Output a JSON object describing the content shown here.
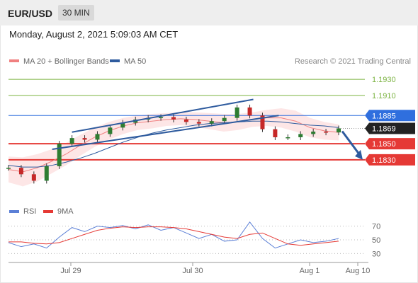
{
  "header": {
    "pair": "EUR/USD",
    "timeframe": "30 MIN"
  },
  "date_line": "Monday, August 2, 2021 5:09:03 AM CET",
  "colors": {
    "ma20": "#f08080",
    "ma50": "#2e5b9e",
    "resistance": "#7cb342",
    "support": "#e53935",
    "pivot": "#2f6fde",
    "current": "#222222",
    "rsi": "#5b7fd6",
    "rsi_ma": "#e53935"
  },
  "legend": {
    "ma20": "MA 20 + Bollinger Bands",
    "ma50": "MA 50",
    "credit": "Research © 2021 Trading Central"
  },
  "rsi_legend": {
    "rsi": "RSI",
    "ma": "9MA"
  },
  "chart_data": [
    {
      "type": "line",
      "title": "",
      "x_ticks": [
        "Jul 29",
        "Jul 30",
        "Aug 1",
        "Aug 10"
      ],
      "ylim": [
        1.1778,
        1.1945
      ],
      "levels": [
        {
          "value": 1.193,
          "label": "1.1930",
          "kind": "resistance"
        },
        {
          "value": 1.191,
          "label": "1.1910",
          "kind": "resistance"
        },
        {
          "value": 1.1885,
          "label": "1.1885",
          "kind": "pivot"
        },
        {
          "value": 1.1869,
          "label": "1.1869",
          "kind": "current"
        },
        {
          "value": 1.185,
          "label": "1.1850",
          "kind": "support"
        },
        {
          "value": 1.183,
          "label": "1.1830",
          "kind": "support"
        }
      ],
      "series": [
        {
          "name": "MA 20 + Bollinger Bands",
          "values": [
            1.1818,
            1.1815,
            1.182,
            1.1828,
            1.1837,
            1.1848,
            1.1858,
            1.1866,
            1.1872,
            1.1876,
            1.1878,
            1.188,
            1.1881,
            1.188,
            1.1878,
            1.1876,
            1.1877,
            1.188,
            1.1882,
            1.1882,
            1.1878,
            1.187,
            1.1866,
            1.1864
          ]
        },
        {
          "name": "MA 50",
          "values": [
            1.1823,
            1.1821,
            1.1821,
            1.1823,
            1.1827,
            1.1832,
            1.1838,
            1.1845,
            1.1852,
            1.1858,
            1.1863,
            1.1867,
            1.187,
            1.1873,
            1.1875,
            1.1876,
            1.1877,
            1.1878,
            1.1878,
            1.1877,
            1.1875,
            1.1873,
            1.1872,
            1.187
          ]
        }
      ],
      "price_path": [
        1.182,
        1.1812,
        1.1804,
        1.1822,
        1.185,
        1.1857,
        1.1855,
        1.1862,
        1.187,
        1.1876,
        1.188,
        1.1882,
        1.1883,
        1.188,
        1.1877,
        1.1875,
        1.1878,
        1.1882,
        1.1895,
        1.1885,
        1.1868,
        1.1858,
        1.1858,
        1.1862,
        1.1865,
        1.1864,
        1.1869
      ]
    },
    {
      "type": "line",
      "title": "",
      "ylim": [
        20,
        80
      ],
      "y_ticks": [
        70,
        50,
        30
      ],
      "series": [
        {
          "name": "RSI",
          "values": [
            46,
            40,
            44,
            38,
            54,
            68,
            62,
            70,
            68,
            71,
            66,
            72,
            64,
            68,
            60,
            52,
            58,
            48,
            50,
            76,
            52,
            38,
            44,
            50,
            46,
            48,
            52
          ]
        },
        {
          "name": "9MA",
          "values": [
            47,
            47,
            45,
            44,
            46,
            52,
            58,
            64,
            67,
            69,
            68,
            69,
            69,
            68,
            66,
            62,
            58,
            54,
            52,
            58,
            60,
            52,
            44,
            42,
            44,
            46,
            48
          ]
        }
      ]
    }
  ]
}
